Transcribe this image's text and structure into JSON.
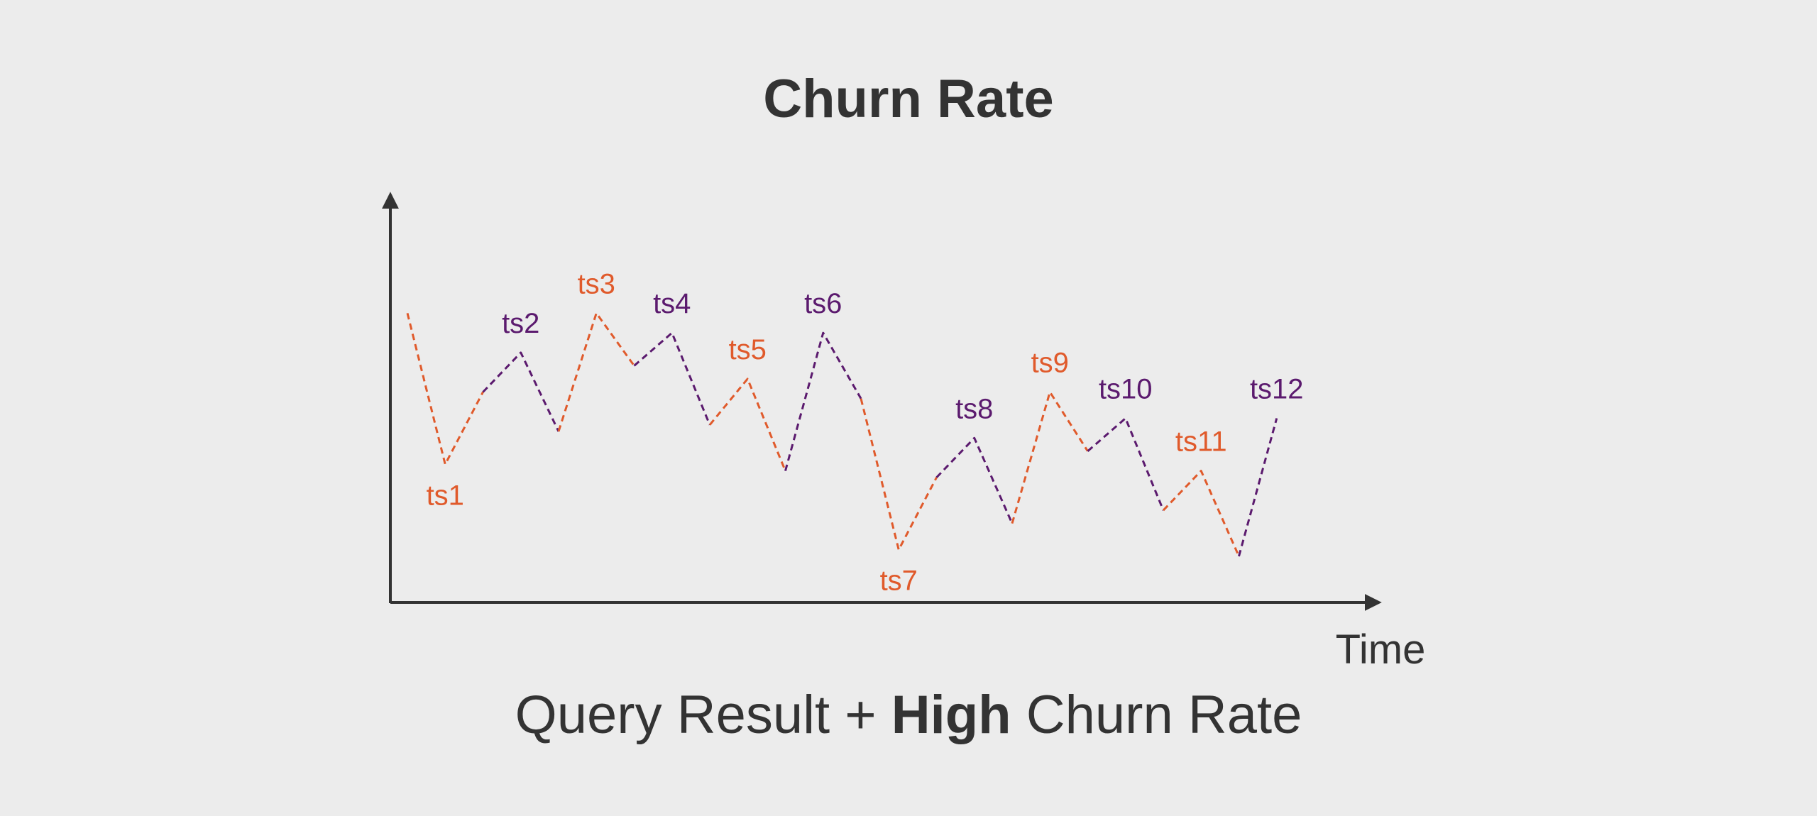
{
  "title": "Churn Rate",
  "caption": {
    "before": "Query Result + ",
    "emphasis": "High",
    "after": " Churn Rate"
  },
  "colors": {
    "orange": "#e05a2b",
    "purple": "#5b1a6e",
    "axis": "#333333"
  },
  "chart_data": {
    "type": "line",
    "xlabel": "Time",
    "ylabel": "",
    "xlim": [
      0,
      24
    ],
    "ylim": [
      0,
      10
    ],
    "grid": false,
    "legend": "none",
    "series": [
      {
        "label": "ts1",
        "color": "orange",
        "label_pos": "below",
        "points": [
          [
            0.0,
            6.4
          ],
          [
            1.0,
            4.1
          ],
          [
            2.0,
            5.2
          ]
        ]
      },
      {
        "label": "ts2",
        "color": "purple",
        "label_pos": "above",
        "points": [
          [
            2.0,
            5.2
          ],
          [
            3.0,
            5.8
          ],
          [
            4.0,
            4.6
          ]
        ]
      },
      {
        "label": "ts3",
        "color": "orange",
        "label_pos": "above",
        "points": [
          [
            4.0,
            4.6
          ],
          [
            5.0,
            6.4
          ],
          [
            6.0,
            5.6
          ]
        ]
      },
      {
        "label": "ts4",
        "color": "purple",
        "label_pos": "above",
        "points": [
          [
            6.0,
            5.6
          ],
          [
            7.0,
            6.1
          ],
          [
            8.0,
            4.7
          ]
        ]
      },
      {
        "label": "ts5",
        "color": "orange",
        "label_pos": "above",
        "points": [
          [
            8.0,
            4.7
          ],
          [
            9.0,
            5.4
          ],
          [
            10.0,
            4.0
          ]
        ]
      },
      {
        "label": "ts6",
        "color": "purple",
        "label_pos": "above",
        "points": [
          [
            10.0,
            4.0
          ],
          [
            11.0,
            6.1
          ],
          [
            12.0,
            5.1
          ]
        ]
      },
      {
        "label": "ts7",
        "color": "orange",
        "label_pos": "below",
        "points": [
          [
            12.0,
            5.1
          ],
          [
            13.0,
            2.8
          ],
          [
            14.0,
            3.9
          ]
        ]
      },
      {
        "label": "ts8",
        "color": "purple",
        "label_pos": "above",
        "points": [
          [
            14.0,
            3.9
          ],
          [
            15.0,
            4.5
          ],
          [
            16.0,
            3.2
          ]
        ]
      },
      {
        "label": "ts9",
        "color": "orange",
        "label_pos": "above",
        "points": [
          [
            16.0,
            3.2
          ],
          [
            17.0,
            5.2
          ],
          [
            18.0,
            4.3
          ]
        ]
      },
      {
        "label": "ts10",
        "color": "purple",
        "label_pos": "above",
        "points": [
          [
            18.0,
            4.3
          ],
          [
            19.0,
            4.8
          ],
          [
            20.0,
            3.4
          ]
        ]
      },
      {
        "label": "ts11",
        "color": "orange",
        "label_pos": "above",
        "points": [
          [
            20.0,
            3.4
          ],
          [
            21.0,
            4.0
          ],
          [
            22.0,
            2.7
          ]
        ]
      },
      {
        "label": "ts12",
        "color": "purple",
        "label_pos": "above",
        "points": [
          [
            22.0,
            2.7
          ],
          [
            23.0,
            4.8
          ]
        ]
      }
    ]
  }
}
